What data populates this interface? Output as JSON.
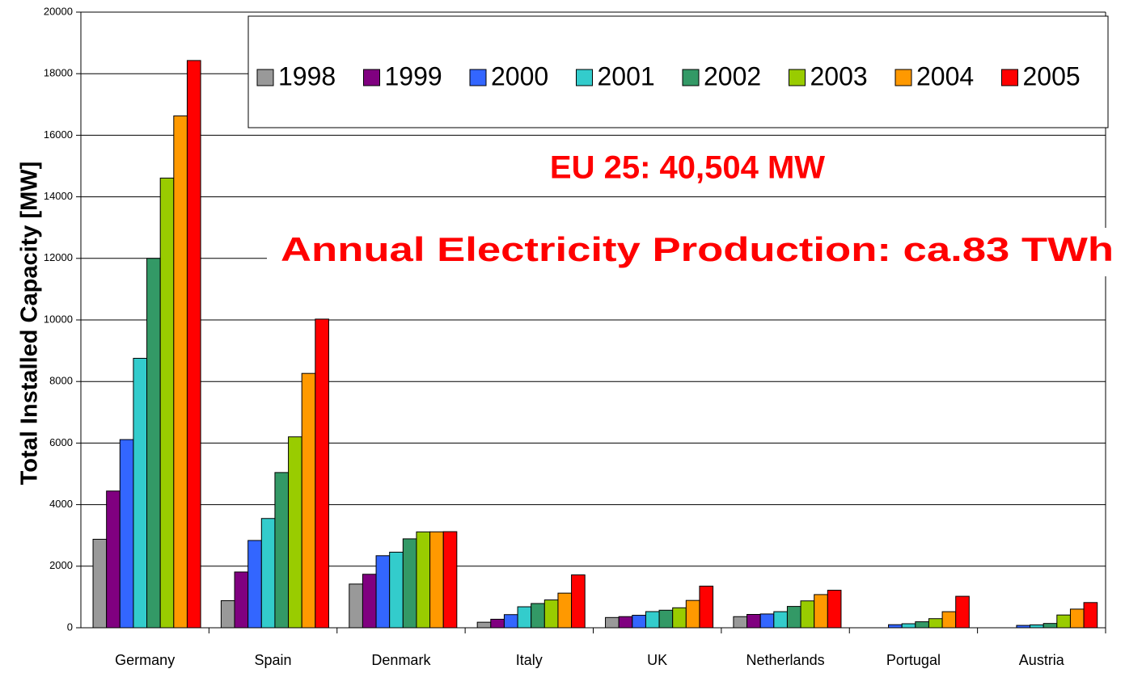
{
  "chart_data": {
    "type": "bar",
    "y_label": "Total Installed Capacity [MW]",
    "annotations": [
      "EU 25: 40,504 MW",
      "Annual Electricity Production: ca.83 TWh"
    ],
    "categories": [
      "Germany",
      "Spain",
      "Denmark",
      "Italy",
      "UK",
      "Netherlands",
      "Portugal",
      "Austria"
    ],
    "series": [
      {
        "name": "1998",
        "color": "#999999",
        "values": [
          2875,
          880,
          1420,
          180,
          333,
          361,
          null,
          null
        ]
      },
      {
        "name": "1999",
        "color": "#800080",
        "values": [
          4442,
          1812,
          1738,
          277,
          362,
          433,
          null,
          null
        ]
      },
      {
        "name": "2000",
        "color": "#3366ff",
        "values": [
          6113,
          2836,
          2341,
          427,
          406,
          448,
          100,
          77
        ]
      },
      {
        "name": "2001",
        "color": "#33cccc",
        "values": [
          8754,
          3550,
          2456,
          682,
          525,
          523,
          131,
          94
        ]
      },
      {
        "name": "2002",
        "color": "#339966",
        "values": [
          12001,
          5043,
          2889,
          788,
          570,
          693,
          195,
          140
        ]
      },
      {
        "name": "2003",
        "color": "#99cc00",
        "values": [
          14609,
          6202,
          3115,
          904,
          649,
          873,
          296,
          415
        ]
      },
      {
        "name": "2004",
        "color": "#ff9900",
        "values": [
          16629,
          8263,
          3117,
          1125,
          888,
          1078,
          522,
          606
        ]
      },
      {
        "name": "2005",
        "color": "#ff0000",
        "values": [
          18428,
          10027,
          3122,
          1717,
          1353,
          1219,
          1022,
          819
        ]
      }
    ],
    "ylim": [
      0,
      20000
    ],
    "yticks": [
      0,
      2000,
      4000,
      6000,
      8000,
      10000,
      12000,
      14000,
      16000,
      18000,
      20000
    ],
    "grid": true
  }
}
